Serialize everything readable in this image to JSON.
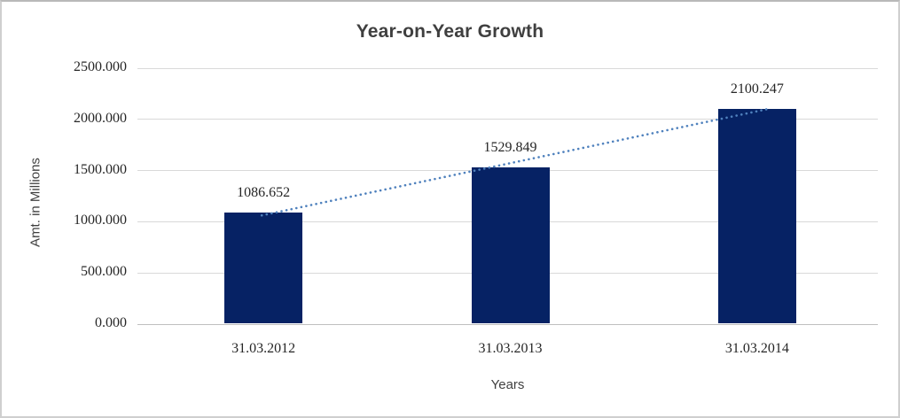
{
  "window": {
    "background": "#ffffff",
    "border_color": "#cfcfcf"
  },
  "chart_data": {
    "type": "bar",
    "title": "Year-on-Year Growth",
    "xlabel": "Years",
    "ylabel": "Amt. in Millions",
    "categories": [
      "31.03.2012",
      "31.03.2013",
      "31.03.2014"
    ],
    "values": [
      1086.652,
      1529.849,
      2100.247
    ],
    "data_labels": [
      "1086.652",
      "1529.849",
      "2100.247"
    ],
    "ylim": [
      0,
      2500
    ],
    "ytick_step": 500,
    "ytick_labels": [
      "0.000",
      "500.000",
      "1000.000",
      "1500.000",
      "2000.000",
      "2500.000"
    ],
    "grid": true,
    "legend": "none",
    "colors": {
      "bar": "#062264",
      "trendline": "#4f81bd",
      "gridline": "#d9d9d9",
      "baseline": "#bfbfbf",
      "tick_text": "#262626",
      "title_text": "#3f3f3f"
    },
    "trendline": {
      "type": "linear",
      "style": "dotted"
    }
  }
}
